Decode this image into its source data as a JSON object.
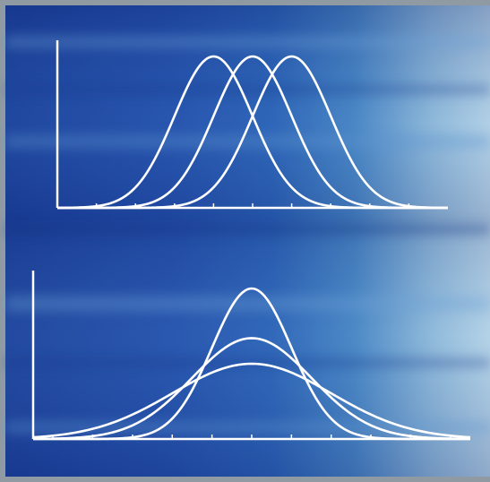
{
  "chart_data": [
    {
      "type": "line",
      "title": "",
      "xlabel": "",
      "ylabel": "",
      "xlim": [
        -5,
        5
      ],
      "ylim": [
        0,
        1
      ],
      "x_ticks": [
        -4,
        -3,
        -2,
        -1,
        0,
        1,
        2,
        3,
        4
      ],
      "grid": false,
      "legend": "none",
      "distribution": "normal",
      "series": [
        {
          "mean": -1.0,
          "sd": 1.0,
          "peak": 1.0
        },
        {
          "mean": 0.0,
          "sd": 1.0,
          "peak": 1.0
        },
        {
          "mean": 1.0,
          "sd": 1.0,
          "peak": 1.0
        }
      ]
    },
    {
      "type": "line",
      "title": "",
      "xlabel": "",
      "ylabel": "",
      "xlim": [
        -5.5,
        5.5
      ],
      "ylim": [
        0,
        1
      ],
      "x_ticks": [
        -5,
        -4,
        -3,
        -2,
        -1,
        0,
        1,
        2,
        3,
        4,
        5
      ],
      "grid": false,
      "legend": "none",
      "distribution": "normal",
      "series": [
        {
          "mean": 0.0,
          "sd": 1.0,
          "peak": 1.0
        },
        {
          "mean": 0.0,
          "sd": 1.5,
          "peak": 0.67
        },
        {
          "mean": 0.0,
          "sd": 2.0,
          "peak": 0.5
        }
      ]
    }
  ],
  "colors": {
    "line": "#ffffff",
    "background_dark": "#1a3f9a",
    "background_mid": "#2e63b8",
    "background_light": "#b9d6e6",
    "frame": "#8f9aa3"
  }
}
